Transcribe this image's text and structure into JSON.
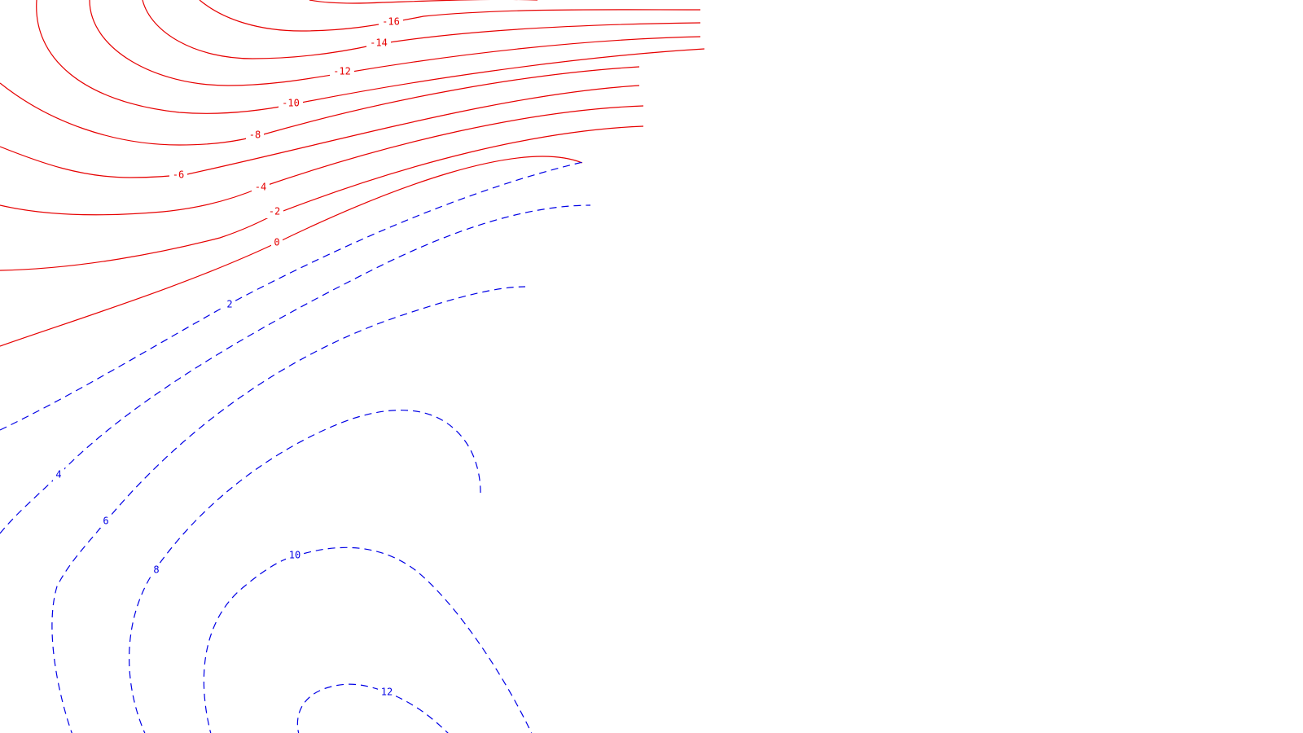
{
  "chart_data": {
    "type": "contour",
    "negative_color": "#e60000",
    "positive_color": "#0000e6",
    "negative_style": "solid",
    "positive_style": "dashed",
    "levels": [
      {
        "value": -16,
        "label": "-16",
        "sign": "negative"
      },
      {
        "value": -14,
        "label": "-14",
        "sign": "negative"
      },
      {
        "value": -12,
        "label": "-12",
        "sign": "negative"
      },
      {
        "value": -10,
        "label": "-10",
        "sign": "negative"
      },
      {
        "value": -8,
        "label": "-8",
        "sign": "negative"
      },
      {
        "value": -6,
        "label": "-6",
        "sign": "negative"
      },
      {
        "value": -4,
        "label": "-4",
        "sign": "negative"
      },
      {
        "value": -2,
        "label": "-2",
        "sign": "negative"
      },
      {
        "value": 0,
        "label": "0",
        "sign": "negative"
      },
      {
        "value": 2,
        "label": "2",
        "sign": "positive"
      },
      {
        "value": 4,
        "label": "4",
        "sign": "positive"
      },
      {
        "value": 6,
        "label": "6",
        "sign": "positive"
      },
      {
        "value": 8,
        "label": "8",
        "sign": "positive"
      },
      {
        "value": 10,
        "label": "10",
        "sign": "positive"
      },
      {
        "value": 12,
        "label": "12",
        "sign": "positive"
      }
    ]
  }
}
